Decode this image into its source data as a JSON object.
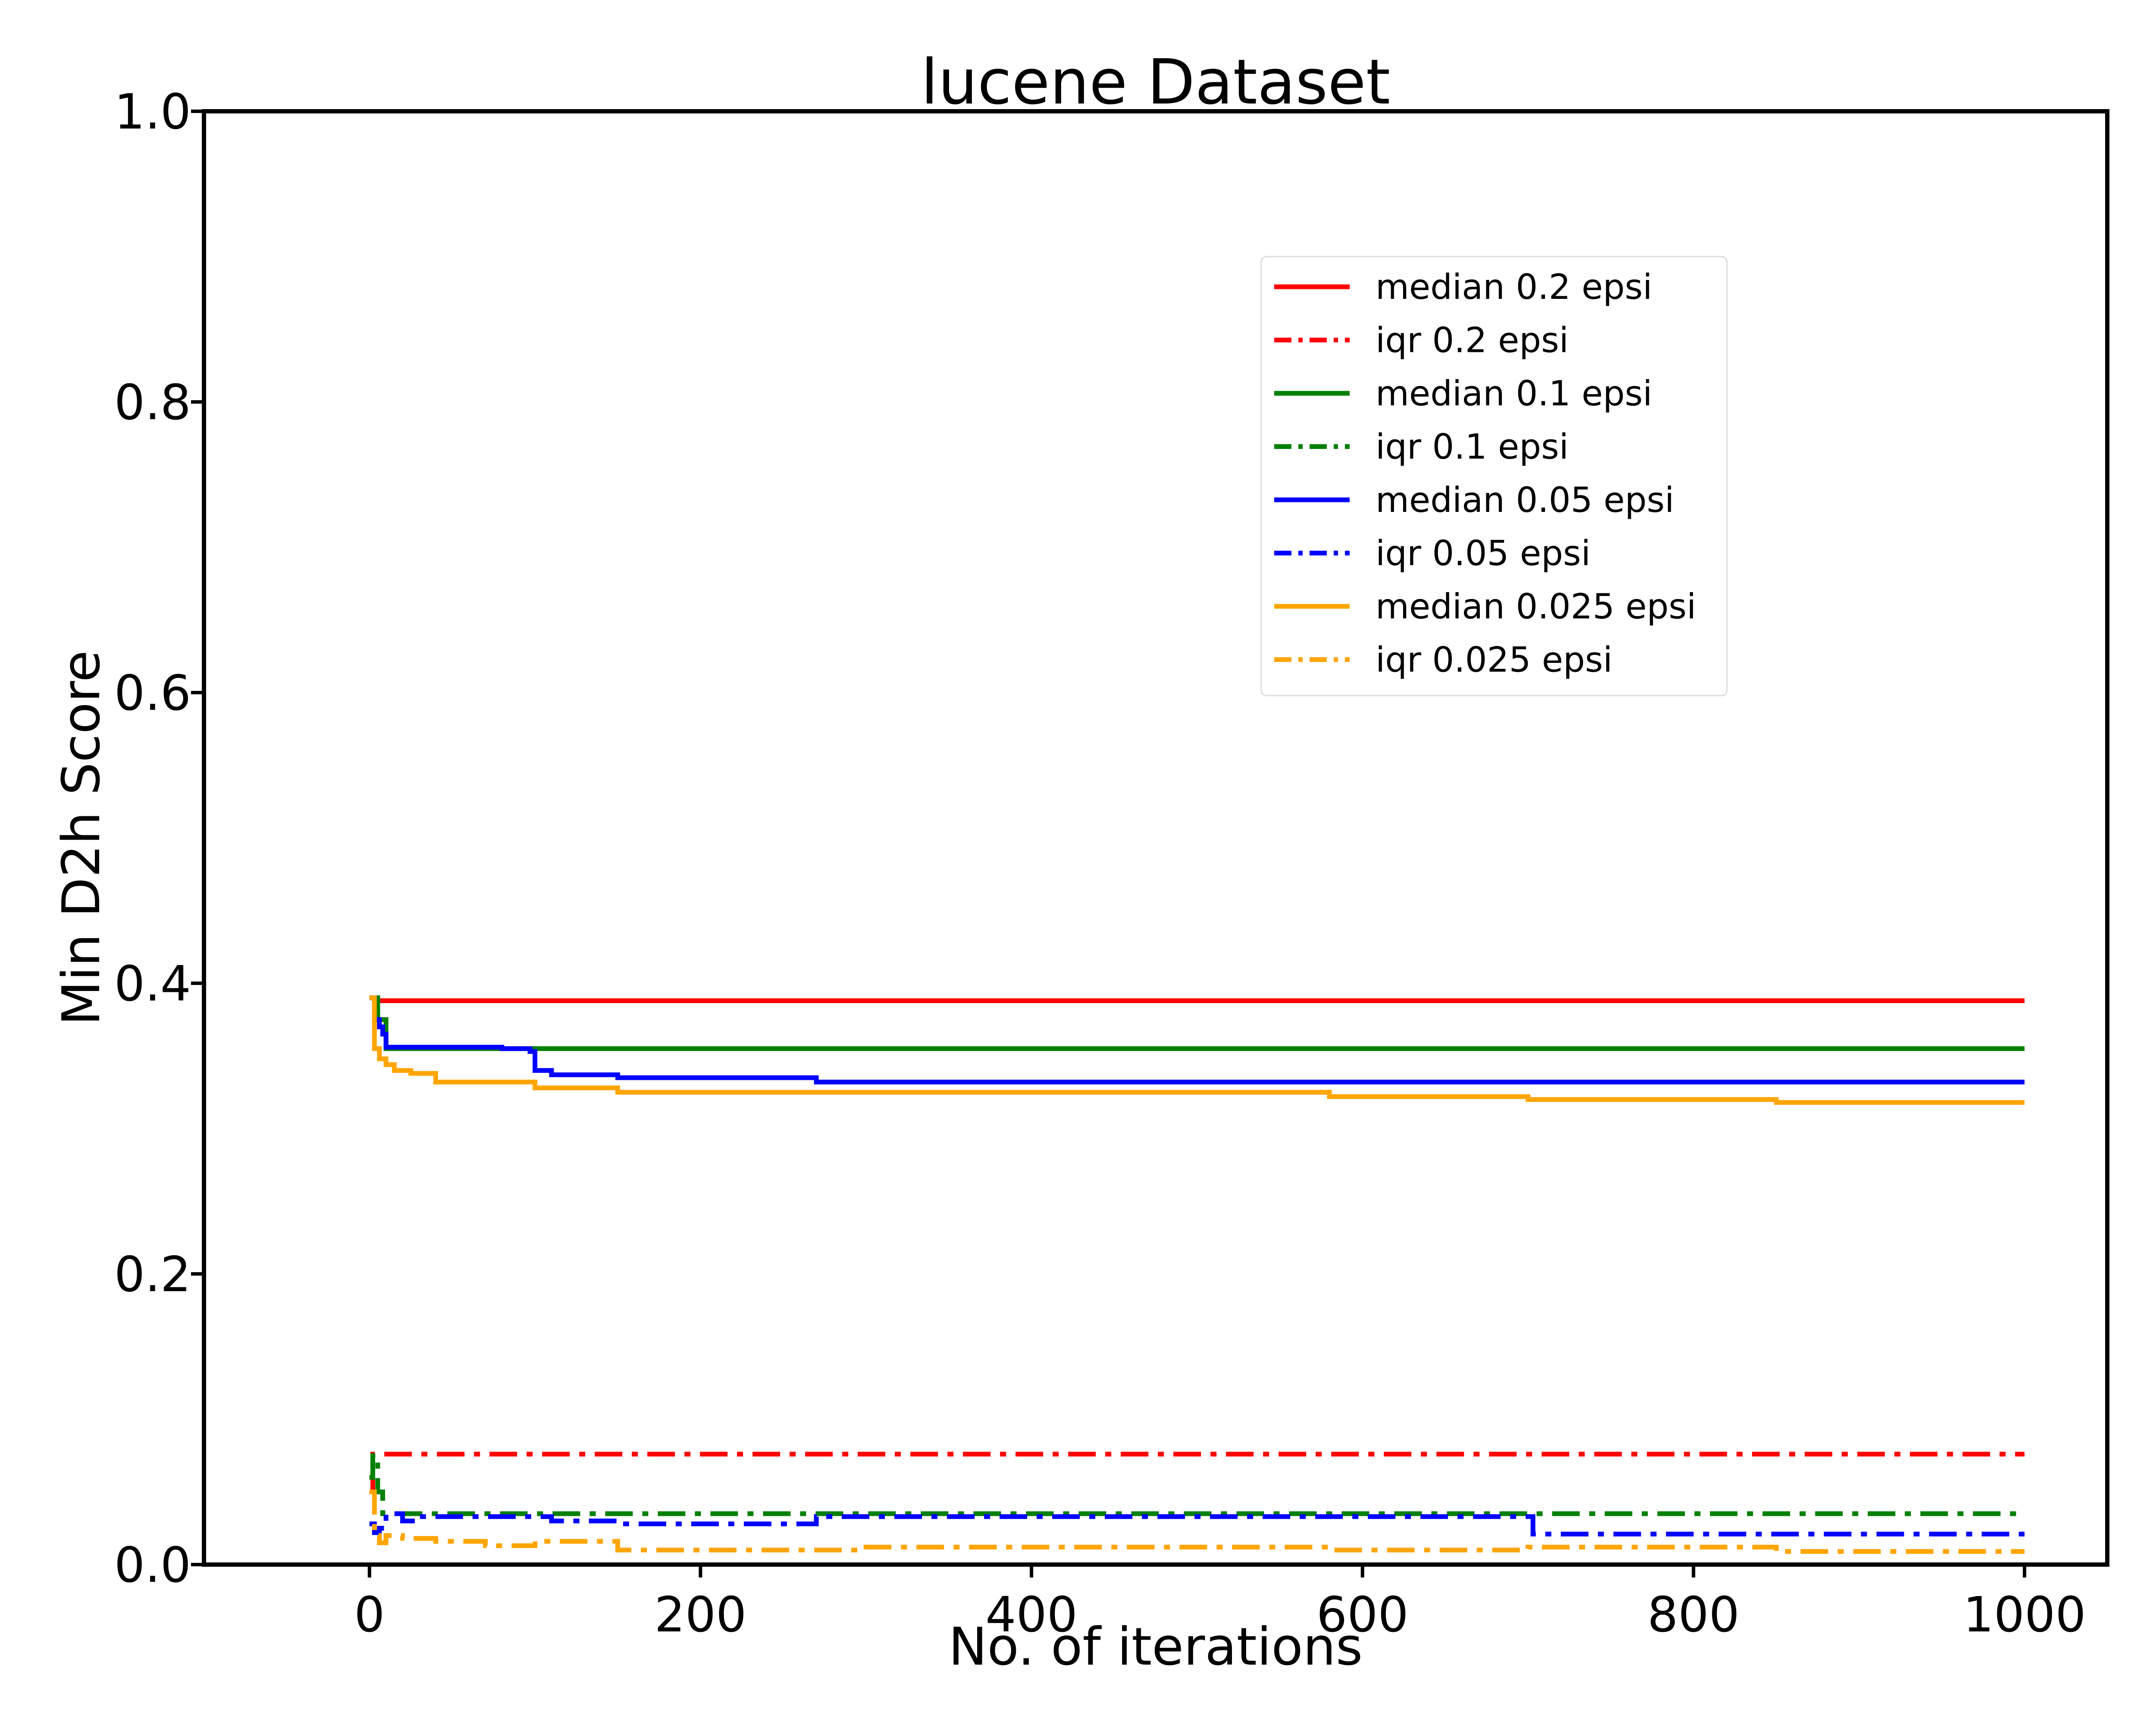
{
  "chart_data": {
    "type": "line",
    "title": "lucene Dataset",
    "xlabel": "No. of iterations",
    "ylabel": "Min D2h Score",
    "xlim": [
      -100,
      1050
    ],
    "ylim": [
      0.0,
      1.0
    ],
    "xticks": [
      0,
      200,
      400,
      600,
      800,
      1000
    ],
    "xtick_labels": [
      "0",
      "200",
      "400",
      "600",
      "800",
      "1000"
    ],
    "yticks": [
      0.0,
      0.2,
      0.4,
      0.6,
      0.8,
      1.0
    ],
    "ytick_labels": [
      "0.0",
      "0.2",
      "0.4",
      "0.6",
      "0.8",
      "1.0"
    ],
    "grid": false,
    "legend_position": "top-right",
    "series": [
      {
        "name": "median 0.2 epsi",
        "color": "#ff0000",
        "style": "solid",
        "x": [
          0,
          5,
          1000
        ],
        "y": [
          0.39,
          0.388,
          0.388
        ]
      },
      {
        "name": "iqr 0.2 epsi",
        "color": "#ff0000",
        "style": "dashdot",
        "x": [
          0,
          2,
          5,
          1000
        ],
        "y": [
          0.05,
          0.076,
          0.076,
          0.076
        ]
      },
      {
        "name": "median 0.1 epsi",
        "color": "#008000",
        "style": "solid",
        "x": [
          0,
          5,
          10,
          1000
        ],
        "y": [
          0.39,
          0.375,
          0.355,
          0.355
        ]
      },
      {
        "name": "iqr 0.1 epsi",
        "color": "#008000",
        "style": "dashdot",
        "x": [
          0,
          2,
          5,
          8,
          1000
        ],
        "y": [
          0.06,
          0.075,
          0.05,
          0.035,
          0.035
        ]
      },
      {
        "name": "median 0.05 epsi",
        "color": "#0000ff",
        "style": "solid",
        "x": [
          0,
          3,
          6,
          8,
          10,
          80,
          97,
          100,
          110,
          150,
          270,
          1000
        ],
        "y": [
          0.39,
          0.375,
          0.37,
          0.365,
          0.356,
          0.355,
          0.353,
          0.34,
          0.337,
          0.335,
          0.332,
          0.332
        ]
      },
      {
        "name": "iqr 0.05 epsi",
        "color": "#0000ff",
        "style": "dashdot",
        "x": [
          0,
          3,
          6,
          10,
          20,
          30,
          100,
          110,
          150,
          270,
          700,
          703,
          1000
        ],
        "y": [
          0.028,
          0.022,
          0.025,
          0.035,
          0.03,
          0.033,
          0.033,
          0.03,
          0.028,
          0.033,
          0.033,
          0.021,
          0.021
        ]
      },
      {
        "name": "median 0.025 epsi",
        "color": "#ffa500",
        "style": "solid",
        "x": [
          0,
          3,
          6,
          10,
          15,
          25,
          40,
          100,
          150,
          580,
          700,
          850,
          1000
        ],
        "y": [
          0.39,
          0.355,
          0.348,
          0.344,
          0.34,
          0.338,
          0.332,
          0.328,
          0.325,
          0.322,
          0.32,
          0.318,
          0.318
        ]
      },
      {
        "name": "iqr 0.025 epsi",
        "color": "#ffa500",
        "style": "dashdot",
        "x": [
          0,
          3,
          6,
          10,
          20,
          40,
          70,
          100,
          150,
          300,
          580,
          700,
          850,
          1000
        ],
        "y": [
          0.05,
          0.02,
          0.015,
          0.02,
          0.018,
          0.016,
          0.013,
          0.016,
          0.01,
          0.012,
          0.01,
          0.012,
          0.009,
          0.009
        ]
      }
    ]
  }
}
